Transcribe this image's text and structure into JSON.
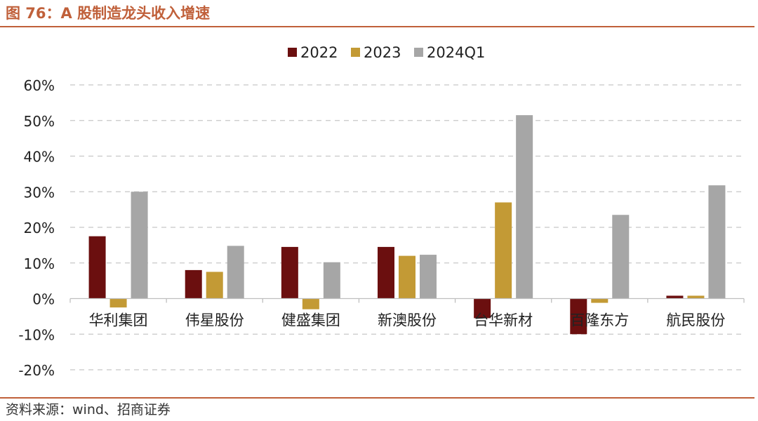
{
  "figure": {
    "title": "图 76：A 股制造龙头收入增速",
    "source": "资料来源：wind、招商证券"
  },
  "chart_data": {
    "type": "bar",
    "categories": [
      "华利集团",
      "伟星股份",
      "健盛集团",
      "新澳股份",
      "台华新材",
      "百隆东方",
      "航民股份"
    ],
    "series": [
      {
        "name": "2022",
        "color": "#6b0f0f",
        "values": [
          17.5,
          8.0,
          14.5,
          14.5,
          -5.5,
          -10.0,
          0.8
        ]
      },
      {
        "name": "2023",
        "color": "#c39a35",
        "values": [
          -2.5,
          7.5,
          -3.0,
          12.0,
          27.0,
          -1.2,
          0.8
        ]
      },
      {
        "name": "2024Q1",
        "color": "#a6a6a6",
        "values": [
          30.0,
          14.8,
          10.2,
          12.3,
          51.5,
          23.5,
          31.8
        ]
      }
    ],
    "yticks": [
      "60%",
      "50%",
      "40%",
      "30%",
      "20%",
      "10%",
      "0%",
      "-10%",
      "-20%"
    ],
    "ylim": [
      -20,
      60
    ],
    "ytick_step": 10,
    "grid": "dashed horizontal",
    "legend_position": "top-center"
  }
}
